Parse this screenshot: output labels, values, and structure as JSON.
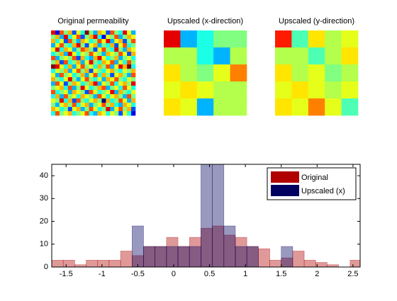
{
  "chart_data": [
    {
      "type": "heatmap",
      "title": "Original permeability",
      "colormap": "jet",
      "clim": [
        0,
        10
      ],
      "values": [
        [
          9,
          1,
          8,
          5,
          7,
          2,
          6,
          4,
          10,
          5,
          3,
          7,
          6,
          2,
          8,
          5,
          4,
          9,
          6,
          3
        ],
        [
          5,
          7,
          3,
          9,
          4,
          6,
          8,
          2,
          5,
          7,
          9,
          4,
          1,
          6,
          5,
          8,
          3,
          5,
          7,
          6
        ],
        [
          7,
          4,
          6,
          2,
          8,
          5,
          3,
          7,
          6,
          4,
          5,
          8,
          6,
          9,
          3,
          6,
          7,
          2,
          5,
          8
        ],
        [
          3,
          6,
          8,
          5,
          4,
          7,
          9,
          5,
          2,
          6,
          7,
          3,
          5,
          4,
          7,
          2,
          6,
          8,
          4,
          5
        ],
        [
          6,
          9,
          4,
          7,
          6,
          3,
          5,
          8,
          7,
          5,
          2,
          6,
          8,
          5,
          4,
          9,
          5,
          3,
          7,
          6
        ],
        [
          4,
          5,
          7,
          3,
          9,
          6,
          4,
          6,
          5,
          8,
          6,
          5,
          3,
          7,
          6,
          5,
          8,
          6,
          2,
          7
        ],
        [
          8,
          3,
          5,
          6,
          5,
          8,
          2,
          7,
          4,
          3,
          7,
          9,
          6,
          4,
          5,
          7,
          3,
          5,
          6,
          4
        ],
        [
          5,
          7,
          2,
          8,
          4,
          5,
          7,
          3,
          6,
          9,
          5,
          4,
          7,
          6,
          8,
          3,
          6,
          4,
          8,
          5
        ],
        [
          10,
          9,
          6,
          4,
          7,
          3,
          6,
          8,
          5,
          6,
          4,
          7,
          5,
          8,
          3,
          6,
          9,
          7,
          10,
          4
        ],
        [
          4,
          6,
          5,
          7,
          3,
          6,
          8,
          5,
          7,
          2,
          6,
          5,
          4,
          6,
          7,
          5,
          4,
          6,
          5,
          7
        ],
        [
          6,
          3,
          8,
          5,
          6,
          4,
          5,
          7,
          3,
          6,
          8,
          4,
          7,
          5,
          2,
          6,
          7,
          5,
          3,
          8
        ],
        [
          7,
          5,
          4,
          6,
          9,
          5,
          3,
          6,
          8,
          5,
          4,
          6,
          3,
          7,
          6,
          8,
          5,
          4,
          6,
          5
        ],
        [
          3,
          8,
          6,
          2,
          5,
          7,
          6,
          4,
          5,
          7,
          9,
          3,
          6,
          5,
          8,
          4,
          6,
          7,
          5,
          9
        ],
        [
          5,
          6,
          7,
          4,
          8,
          3,
          5,
          9,
          6,
          4,
          5,
          7,
          8,
          3,
          5,
          6,
          4,
          8,
          6,
          4
        ],
        [
          8,
          4,
          5,
          6,
          3,
          7,
          6,
          5,
          2,
          8,
          6,
          4,
          5,
          6,
          9,
          3,
          7,
          5,
          4,
          6
        ],
        [
          4,
          7,
          3,
          8,
          5,
          6,
          4,
          7,
          6,
          5,
          3,
          8,
          6,
          4,
          6,
          7,
          5,
          3,
          8,
          5
        ],
        [
          6,
          5,
          9,
          4,
          7,
          2,
          8,
          5,
          4,
          6,
          7,
          5,
          0,
          7,
          4,
          5,
          8,
          6,
          3,
          7
        ],
        [
          5,
          3,
          6,
          7,
          5,
          8,
          4,
          6,
          7,
          3,
          5,
          6,
          8,
          5,
          7,
          4,
          3,
          7,
          6,
          4
        ],
        [
          7,
          6,
          4,
          5,
          2,
          6,
          7,
          3,
          5,
          8,
          6,
          4,
          5,
          9,
          3,
          6,
          8,
          5,
          7,
          2
        ],
        [
          4,
          8,
          5,
          6,
          7,
          4,
          5,
          6,
          8,
          4,
          3,
          7,
          6,
          4,
          6,
          5,
          2,
          6,
          4,
          1
        ]
      ]
    },
    {
      "type": "heatmap",
      "title": "Upscaled (x-direction)",
      "colormap": "jet",
      "clim": [
        0,
        10
      ],
      "values": [
        [
          9,
          3,
          4,
          5,
          5
        ],
        [
          5.5,
          5.5,
          4,
          3,
          5.5
        ],
        [
          6.5,
          5.5,
          5,
          6,
          7.5
        ],
        [
          6,
          6.5,
          6,
          5.5,
          5.5
        ],
        [
          6.5,
          6,
          3,
          5.5,
          5.5
        ]
      ]
    },
    {
      "type": "heatmap",
      "title": "Upscaled (y-direction)",
      "colormap": "jet",
      "clim": [
        0,
        10
      ],
      "values": [
        [
          8.5,
          4.5,
          6.5,
          5.5,
          6
        ],
        [
          5.5,
          5.5,
          4.5,
          5.5,
          6.5
        ],
        [
          6.5,
          5.5,
          6,
          5,
          5.5
        ],
        [
          6,
          6.5,
          6,
          5.5,
          6
        ],
        [
          6.5,
          6,
          7.5,
          6,
          4.5
        ]
      ]
    },
    {
      "type": "histogram",
      "bins": [
        -1.7,
        -1.54,
        -1.38,
        -1.22,
        -1.06,
        -0.9,
        -0.74,
        -0.58,
        -0.42,
        -0.26,
        -0.1,
        0.06,
        0.22,
        0.38,
        0.54,
        0.7,
        0.86,
        1.02,
        1.18,
        1.34,
        1.5,
        1.66,
        1.82,
        1.98,
        2.14,
        2.3,
        2.46,
        2.62
      ],
      "series": [
        {
          "name": "Original",
          "color": "#b00000",
          "values": [
            3,
            3,
            1,
            3,
            3,
            3,
            7,
            5,
            9,
            9,
            13,
            9,
            13,
            17,
            18,
            14,
            13,
            9,
            8,
            3,
            4,
            7,
            3,
            2,
            1,
            0,
            3
          ]
        },
        {
          "name": "Upscaled (x)",
          "color": "#000060",
          "values": [
            0,
            0,
            0,
            0,
            0,
            0,
            0,
            18,
            9,
            9,
            9,
            9,
            9,
            45,
            45,
            18,
            9,
            9,
            0,
            0,
            9,
            0,
            0,
            0,
            0,
            0,
            0
          ]
        }
      ],
      "xlim": [
        -1.7,
        2.6
      ],
      "ylim": [
        0,
        45
      ],
      "xticks": [
        -1.5,
        -1,
        -0.5,
        0,
        0.5,
        1,
        1.5,
        2,
        2.5
      ],
      "yticks": [
        0,
        10,
        20,
        30,
        40
      ],
      "legend": "upper right"
    }
  ]
}
